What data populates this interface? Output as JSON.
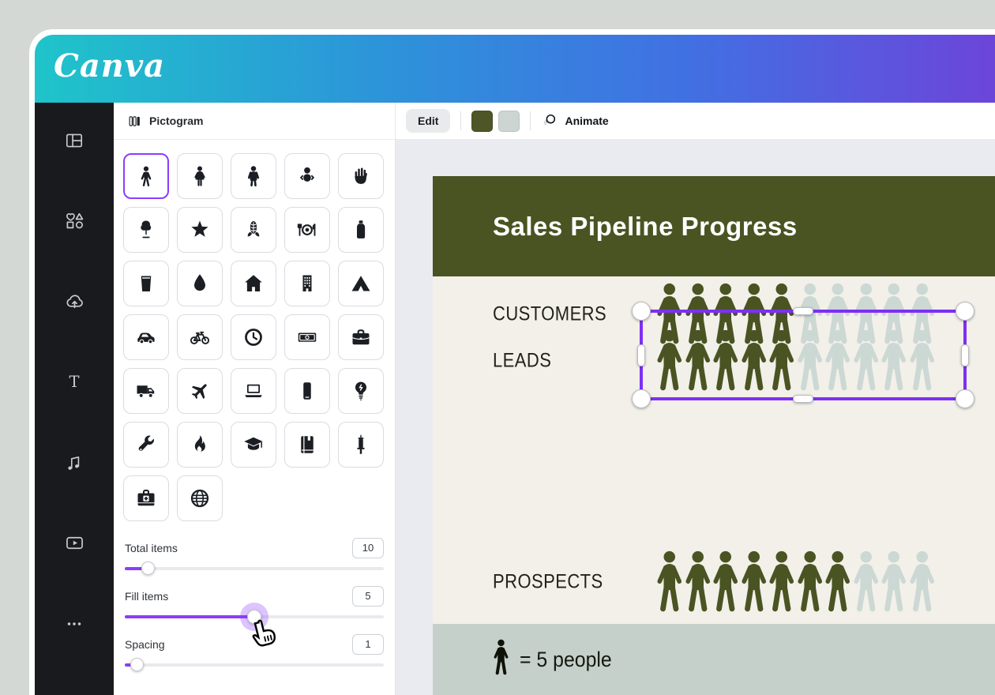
{
  "logo": {
    "text": "Canva"
  },
  "sidebar": {
    "items": [
      {
        "icon": "design"
      },
      {
        "icon": "elements"
      },
      {
        "icon": "uploads"
      },
      {
        "icon": "text"
      },
      {
        "icon": "audio"
      },
      {
        "icon": "videos"
      },
      {
        "icon": "more"
      }
    ]
  },
  "panel": {
    "title": "Pictogram",
    "grid": {
      "icons": [
        {
          "name": "person",
          "selected": true
        },
        {
          "name": "woman",
          "selected": false
        },
        {
          "name": "man",
          "selected": false
        },
        {
          "name": "baby",
          "selected": false
        },
        {
          "name": "hand",
          "selected": false
        },
        {
          "name": "tree",
          "selected": false
        },
        {
          "name": "star",
          "selected": false
        },
        {
          "name": "corn",
          "selected": false
        },
        {
          "name": "meal",
          "selected": false
        },
        {
          "name": "bottle",
          "selected": false
        },
        {
          "name": "cup",
          "selected": false
        },
        {
          "name": "droplet",
          "selected": false
        },
        {
          "name": "house",
          "selected": false
        },
        {
          "name": "building",
          "selected": false
        },
        {
          "name": "tent",
          "selected": false
        },
        {
          "name": "car",
          "selected": false
        },
        {
          "name": "bicycle",
          "selected": false
        },
        {
          "name": "clock",
          "selected": false
        },
        {
          "name": "money",
          "selected": false
        },
        {
          "name": "briefcase",
          "selected": false
        },
        {
          "name": "truck",
          "selected": false
        },
        {
          "name": "plane",
          "selected": false
        },
        {
          "name": "laptop",
          "selected": false
        },
        {
          "name": "phone",
          "selected": false
        },
        {
          "name": "lightbulb",
          "selected": false
        },
        {
          "name": "wrench",
          "selected": false
        },
        {
          "name": "flame",
          "selected": false
        },
        {
          "name": "graduation-cap",
          "selected": false
        },
        {
          "name": "book",
          "selected": false
        },
        {
          "name": "syringe",
          "selected": false
        },
        {
          "name": "medical-kit",
          "selected": false
        },
        {
          "name": "globe",
          "selected": false
        }
      ]
    },
    "sliders": [
      {
        "label": "Total items",
        "value": "10",
        "percent": 9,
        "active": false
      },
      {
        "label": "Fill items",
        "value": "5",
        "percent": 50,
        "active": true
      },
      {
        "label": "Spacing",
        "value": "1",
        "percent": 5,
        "active": false
      }
    ]
  },
  "toolbar": {
    "edit_label": "Edit",
    "swatches": [
      "#4e5527",
      "#ccd5d2"
    ],
    "animate_label": "Animate"
  },
  "canvas": {
    "title": "Sales Pipeline Progress",
    "rows": [
      {
        "label": "LEADS",
        "filled": 5,
        "total": 10,
        "selected": true
      },
      {
        "label": "PROSPECTS",
        "filled": 7,
        "total": 10,
        "selected": false
      },
      {
        "label": "CUSTOMERS",
        "filled": 5,
        "total": 10,
        "selected": false
      }
    ],
    "legend_text": "= 5 people",
    "colors": {
      "header": "#4a5422",
      "page": "#f2f0e9",
      "footer": "#c5d0ca",
      "person_fill": "#4a5423",
      "person_empty": "#ccd8d4",
      "selection": "#7e2ff5",
      "accent": "#8b3dff"
    }
  },
  "chart_data": {
    "type": "pictogram",
    "title": "Sales Pipeline Progress",
    "categories": [
      "LEADS",
      "PROSPECTS",
      "CUSTOMERS"
    ],
    "icons_per_row": 10,
    "filled_icons": [
      5,
      7,
      5
    ],
    "unit_per_icon": 5,
    "values_people": [
      25,
      35,
      25
    ],
    "legend": "= 5 people"
  }
}
